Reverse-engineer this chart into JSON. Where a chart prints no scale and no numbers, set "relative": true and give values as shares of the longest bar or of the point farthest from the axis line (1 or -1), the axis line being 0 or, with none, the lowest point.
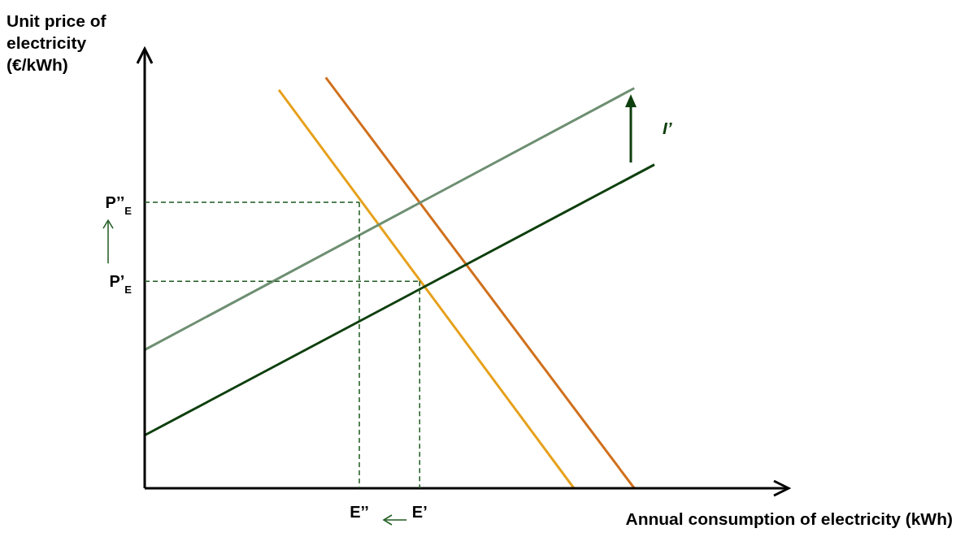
{
  "chart_data": {
    "type": "line",
    "relative": true,
    "xlabel": "Annual consumption of electricity (kWh)",
    "ylabel": "Unit price of electricity (€/kWh)",
    "ylim": [
      0,
      1.07
    ],
    "legend": false,
    "grid": false,
    "marker": "none",
    "line_style": "solid",
    "annotations": [
      "I’"
    ],
    "categories": [
      null,
      null,
      null,
      null,
      null,
      null,
      null,
      null,
      null,
      null,
      null,
      null,
      null,
      null,
      null,
      null,
      null,
      null,
      null,
      null,
      null,
      null,
      null,
      null,
      null,
      null,
      null,
      null,
      null,
      null,
      null,
      null,
      "E’’",
      null,
      null,
      null,
      null,
      null,
      null,
      null,
      null,
      "E’",
      null,
      null,
      null,
      null,
      null,
      null,
      null,
      null,
      null,
      null,
      null,
      null,
      null,
      null,
      null,
      null,
      null,
      null,
      null,
      null,
      null,
      null,
      null,
      null,
      null,
      null,
      null,
      null,
      null,
      null,
      null,
      null,
      null,
      null,
      null,
      null,
      null,
      null,
      null,
      null,
      null,
      null,
      null,
      null,
      null,
      null,
      null,
      null,
      null,
      null,
      null,
      null,
      null,
      null,
      null
    ],
    "ref_lines": [
      {
        "axis": "y",
        "value": 0.696,
        "label": "P’’$_{E}$",
        "color": "#1e5a1e",
        "line_style": "dashed"
      },
      {
        "axis": "x",
        "value": "E’’",
        "color": "#1e5a1e",
        "line_style": "dashed"
      },
      {
        "axis": "y",
        "value": 0.504,
        "label": "P’$_{E}$",
        "color": "#1e5a1e",
        "line_style": "dashed"
      },
      {
        "axis": "x",
        "value": "E’",
        "color": "#1e5a1e",
        "line_style": "dashed"
      }
    ],
    "series": [
      {
        "color": "#e6a11c",
        "values": [
          null,
          null,
          null,
          null,
          null,
          null,
          null,
          null,
          null,
          null,
          null,
          null,
          null,
          null,
          null,
          null,
          null,
          null,
          null,
          null,
          0.97,
          null,
          null,
          null,
          null,
          null,
          null,
          null,
          null,
          null,
          null,
          null,
          null,
          null,
          null,
          null,
          null,
          null,
          null,
          null,
          null,
          null,
          null,
          null,
          null,
          null,
          null,
          null,
          null,
          null,
          null,
          null,
          null,
          null,
          null,
          null,
          null,
          null,
          null,
          null,
          null,
          null,
          null,
          null,
          0,
          null,
          null,
          null,
          null,
          null,
          null,
          null,
          null,
          null,
          null,
          null,
          null,
          null,
          null,
          null,
          null,
          null,
          null,
          null,
          null,
          null,
          null,
          null,
          null,
          null,
          null,
          null,
          null,
          null,
          null,
          null,
          null
        ]
      },
      {
        "color": "#d0701c",
        "values": [
          null,
          null,
          null,
          null,
          null,
          null,
          null,
          null,
          null,
          null,
          null,
          null,
          null,
          null,
          null,
          null,
          null,
          null,
          null,
          null,
          null,
          null,
          null,
          null,
          null,
          null,
          null,
          1.0,
          null,
          null,
          null,
          null,
          null,
          null,
          null,
          null,
          null,
          null,
          null,
          null,
          null,
          null,
          null,
          null,
          null,
          null,
          null,
          null,
          null,
          null,
          null,
          null,
          null,
          null,
          null,
          null,
          null,
          null,
          null,
          null,
          null,
          null,
          null,
          null,
          null,
          null,
          null,
          null,
          null,
          null,
          null,
          null,
          null,
          0,
          null,
          null,
          null,
          null,
          null,
          null,
          null,
          null,
          null,
          null,
          null,
          null,
          null,
          null,
          null,
          null,
          null,
          null,
          null,
          null,
          null,
          null,
          null
        ]
      },
      {
        "color": "#6e8f72",
        "values": [
          0.337,
          null,
          null,
          null,
          null,
          null,
          null,
          null,
          null,
          null,
          null,
          null,
          null,
          null,
          null,
          null,
          null,
          null,
          null,
          null,
          null,
          null,
          null,
          null,
          null,
          null,
          null,
          null,
          null,
          null,
          null,
          null,
          null,
          null,
          null,
          null,
          null,
          null,
          null,
          null,
          null,
          null,
          null,
          null,
          null,
          null,
          null,
          null,
          null,
          null,
          null,
          null,
          null,
          null,
          null,
          null,
          null,
          null,
          null,
          null,
          null,
          null,
          null,
          null,
          null,
          null,
          null,
          null,
          null,
          null,
          null,
          null,
          null,
          0.974,
          null,
          null,
          null,
          null,
          null,
          null,
          null,
          null,
          null,
          null,
          null,
          null,
          null,
          null,
          null,
          null,
          null,
          null,
          null,
          null,
          null,
          null,
          null
        ]
      },
      {
        "color": "#0e3f0e",
        "values": [
          0.129,
          null,
          null,
          null,
          null,
          null,
          null,
          null,
          null,
          null,
          null,
          null,
          null,
          null,
          null,
          null,
          null,
          null,
          null,
          null,
          null,
          null,
          null,
          null,
          null,
          null,
          null,
          null,
          null,
          null,
          null,
          null,
          null,
          null,
          null,
          null,
          null,
          null,
          null,
          null,
          null,
          null,
          null,
          null,
          null,
          null,
          null,
          null,
          null,
          null,
          null,
          null,
          null,
          null,
          null,
          null,
          null,
          null,
          null,
          null,
          null,
          null,
          null,
          null,
          null,
          null,
          null,
          null,
          null,
          null,
          null,
          null,
          null,
          null,
          null,
          null,
          0.788,
          null,
          null,
          null,
          null,
          null,
          null,
          null,
          null,
          null,
          null,
          null,
          null,
          null,
          null,
          null,
          null,
          null,
          null,
          null,
          null
        ]
      }
    ]
  }
}
